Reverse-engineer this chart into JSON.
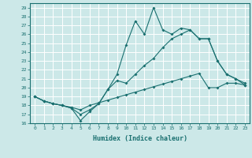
{
  "xlabel": "Humidex (Indice chaleur)",
  "bg_color": "#cce8e8",
  "grid_color": "#ffffff",
  "line_color": "#1a7070",
  "xlim": [
    -0.5,
    23.5
  ],
  "ylim": [
    16,
    29.5
  ],
  "yticks": [
    16,
    17,
    18,
    19,
    20,
    21,
    22,
    23,
    24,
    25,
    26,
    27,
    28,
    29
  ],
  "xticks": [
    0,
    1,
    2,
    3,
    4,
    5,
    6,
    7,
    8,
    9,
    10,
    11,
    12,
    13,
    14,
    15,
    16,
    17,
    18,
    19,
    20,
    21,
    22,
    23
  ],
  "line1_x": [
    0,
    1,
    2,
    3,
    4,
    5,
    6,
    7,
    8,
    9,
    10,
    11,
    12,
    13,
    14,
    15,
    16,
    17,
    18,
    19,
    20,
    21,
    22,
    23
  ],
  "line1_y": [
    19,
    18.5,
    18.2,
    18,
    17.8,
    17.5,
    18.0,
    18.3,
    18.6,
    18.9,
    19.2,
    19.5,
    19.8,
    20.1,
    20.4,
    20.7,
    21.0,
    21.3,
    21.6,
    20.0,
    20.0,
    20.5,
    20.5,
    20.3
  ],
  "line2_x": [
    0,
    1,
    2,
    3,
    4,
    5,
    6,
    7,
    8,
    9,
    10,
    11,
    12,
    13,
    14,
    15,
    16,
    17,
    18,
    19,
    20,
    21,
    22,
    23
  ],
  "line2_y": [
    19,
    18.5,
    18.2,
    18,
    17.7,
    17.0,
    17.5,
    18.2,
    19.8,
    20.8,
    20.5,
    21.5,
    22.5,
    23.3,
    24.5,
    25.5,
    26.0,
    26.5,
    25.5,
    25.5,
    23.0,
    21.5,
    21.0,
    20.5
  ],
  "line3_x": [
    0,
    1,
    2,
    3,
    4,
    5,
    6,
    7,
    8,
    9,
    10,
    11,
    12,
    13,
    14,
    15,
    16,
    17,
    18,
    19,
    20,
    21,
    22,
    23
  ],
  "line3_y": [
    19,
    18.5,
    18.2,
    18,
    17.7,
    16.3,
    17.3,
    18.2,
    19.8,
    21.5,
    24.8,
    27.5,
    26.0,
    29.0,
    26.5,
    26.0,
    26.7,
    26.5,
    25.5,
    25.5,
    23.0,
    21.5,
    21.0,
    20.3
  ]
}
